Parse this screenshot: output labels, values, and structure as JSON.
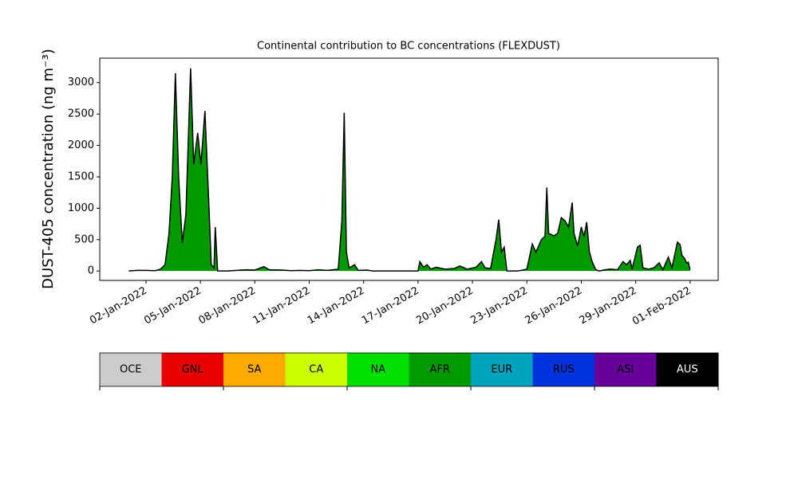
{
  "chart_data": {
    "type": "area",
    "title": "Continental contribution to BC concentrations (FLEXDUST)",
    "ylabel": "DUST-405 concentration (ng m⁻³)",
    "xlim": [
      -0.55,
      33.55
    ],
    "ylim": [
      -150,
      3390
    ],
    "xticks": [
      {
        "value": 2,
        "label": "02-Jan-2022"
      },
      {
        "value": 5,
        "label": "05-Jan-2022"
      },
      {
        "value": 8,
        "label": "08-Jan-2022"
      },
      {
        "value": 11,
        "label": "11-Jan-2022"
      },
      {
        "value": 14,
        "label": "14-Jan-2022"
      },
      {
        "value": 17,
        "label": "17-Jan-2022"
      },
      {
        "value": 20,
        "label": "20-Jan-2022"
      },
      {
        "value": 23,
        "label": "23-Jan-2022"
      },
      {
        "value": 26,
        "label": "26-Jan-2022"
      },
      {
        "value": 29,
        "label": "29-Jan-2022"
      },
      {
        "value": 32,
        "label": "01-Feb-2022"
      }
    ],
    "yticks": [
      0,
      500,
      1000,
      1500,
      2000,
      2500,
      3000
    ],
    "x": [
      1.05,
      1.5,
      2.0,
      2.5,
      2.8,
      3.05,
      3.27,
      3.45,
      3.62,
      3.8,
      4.0,
      4.2,
      4.46,
      4.63,
      4.85,
      5.03,
      5.25,
      5.46,
      5.6,
      5.75,
      5.82,
      5.95,
      6.5,
      7.0,
      7.5,
      8.0,
      8.5,
      8.8,
      9.5,
      10.0,
      10.5,
      11.0,
      11.5,
      12.0,
      12.6,
      12.8,
      12.93,
      13.05,
      13.2,
      13.5,
      13.7,
      14.2,
      14.5,
      17.0,
      17.1,
      17.3,
      17.5,
      17.7,
      18.0,
      18.5,
      19.0,
      19.3,
      19.7,
      20.2,
      20.5,
      20.7,
      21.0,
      21.3,
      21.45,
      21.6,
      21.75,
      21.9,
      22.5,
      23.0,
      23.3,
      23.5,
      23.8,
      24.0,
      24.1,
      24.2,
      24.5,
      24.7,
      24.9,
      25.1,
      25.3,
      25.5,
      25.6,
      25.8,
      26.0,
      26.15,
      26.3,
      26.45,
      26.6,
      26.8,
      27.0,
      27.3,
      27.6,
      28.0,
      28.3,
      28.5,
      28.7,
      28.8,
      29.1,
      29.25,
      29.4,
      29.7,
      30.0,
      30.3,
      30.5,
      30.8,
      31.0,
      31.3,
      31.45,
      31.55,
      31.7,
      31.8,
      31.9,
      32.0
    ],
    "series": [
      {
        "name": "AFR",
        "color": "#009900",
        "values": [
          0,
          10,
          10,
          5,
          30,
          100,
          600,
          1500,
          3150,
          1500,
          450,
          900,
          3230,
          1700,
          2200,
          1700,
          2550,
          1100,
          100,
          50,
          700,
          0,
          0,
          10,
          20,
          15,
          70,
          20,
          15,
          5,
          10,
          5,
          20,
          10,
          30,
          800,
          2520,
          300,
          50,
          100,
          10,
          15,
          0,
          0,
          150,
          60,
          100,
          30,
          60,
          30,
          40,
          80,
          30,
          60,
          150,
          50,
          40,
          500,
          820,
          300,
          380,
          0,
          0,
          30,
          430,
          300,
          500,
          550,
          1330,
          600,
          560,
          600,
          850,
          800,
          700,
          1090,
          600,
          400,
          700,
          550,
          780,
          300,
          150,
          20,
          0,
          20,
          30,
          20,
          150,
          100,
          170,
          30,
          380,
          410,
          50,
          30,
          50,
          130,
          20,
          220,
          50,
          460,
          420,
          250,
          200,
          130,
          140,
          20
        ]
      }
    ],
    "colorbar": {
      "labels": [
        "OCE",
        "GNL",
        "SA",
        "CA",
        "NA",
        "AFR",
        "EUR",
        "RUS",
        "ASI",
        "AUS"
      ],
      "colors": [
        "#cccccc",
        "#e60000",
        "#ffaa00",
        "#ccff00",
        "#00e000",
        "#009900",
        "#00a3bb",
        "#0033dd",
        "#660099",
        "#000000"
      ]
    }
  }
}
